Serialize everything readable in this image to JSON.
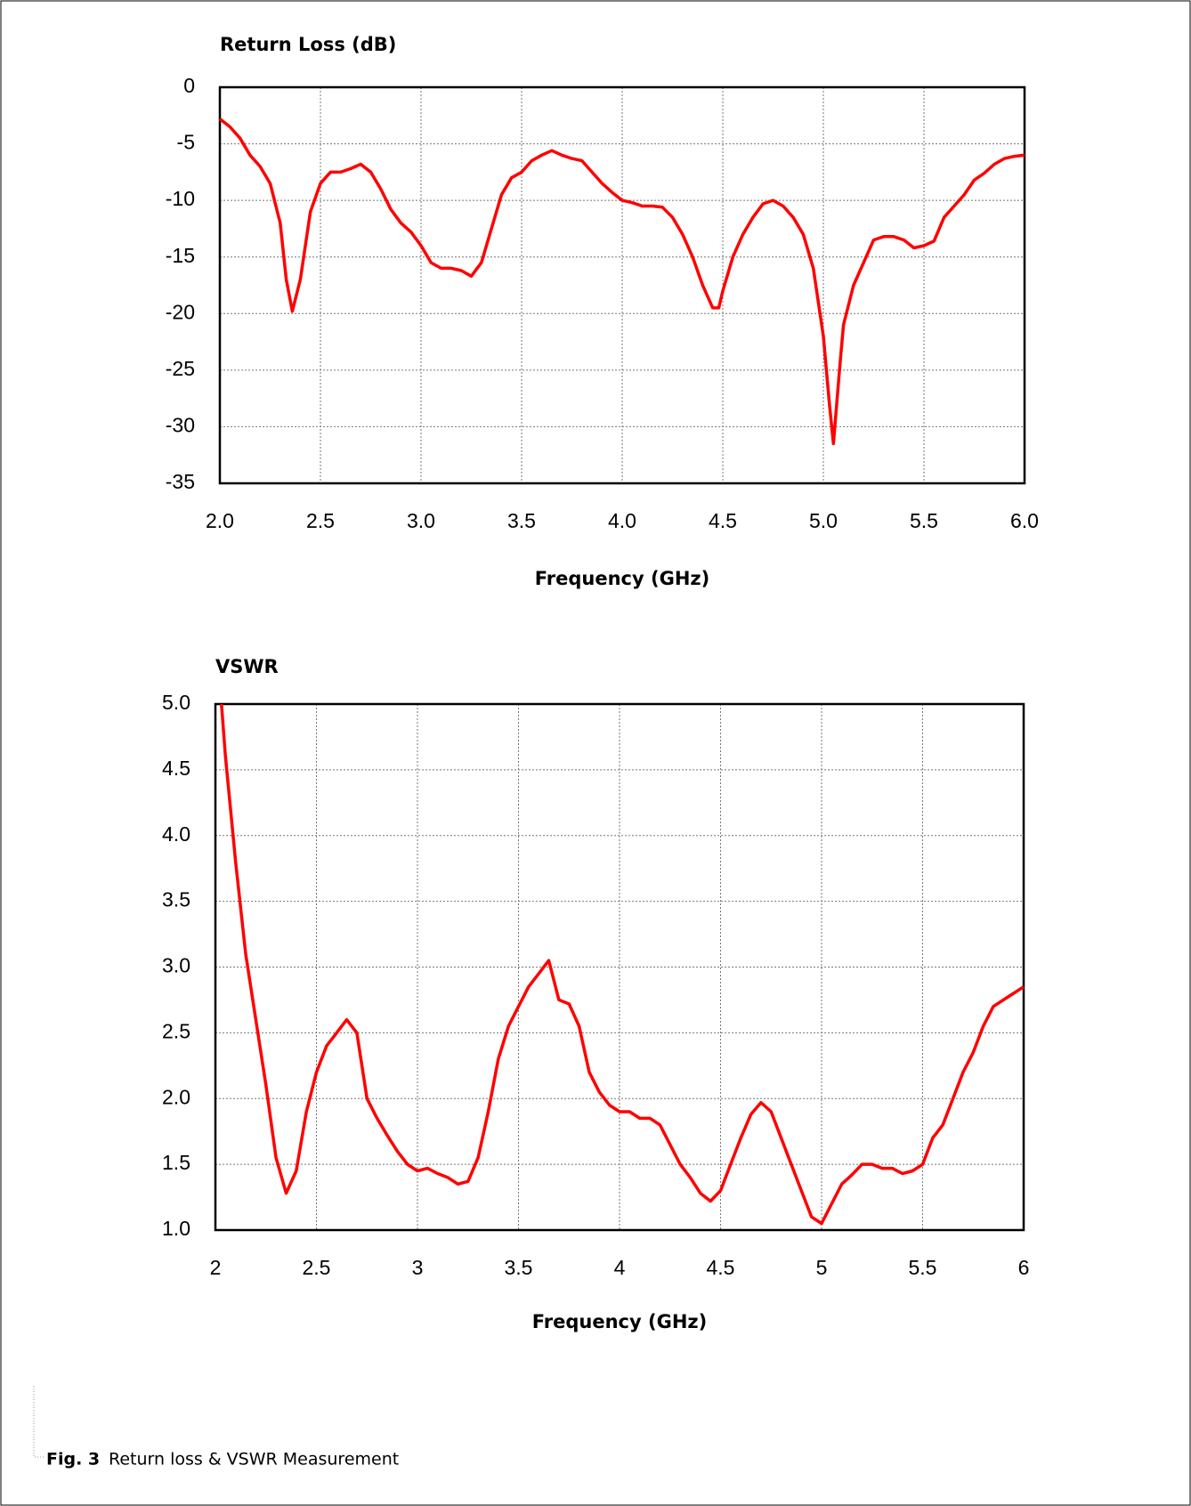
{
  "chart_data": [
    {
      "type": "line",
      "title": "Return Loss (dB)",
      "x_label": "Frequency (GHz)",
      "color": "#ff0000",
      "grid": true,
      "xlim": [
        2,
        6
      ],
      "ylim": [
        -35,
        0
      ],
      "xticks": [
        {
          "value": 2,
          "label": "2.0"
        },
        2.5,
        {
          "value": 3,
          "label": "3.0"
        },
        3.5,
        {
          "value": 4,
          "label": "4.0"
        },
        4.5,
        {
          "value": 5,
          "label": "5.0"
        },
        5.5,
        {
          "value": 6,
          "label": "6.0"
        }
      ],
      "yticks": [
        0,
        -5,
        -10,
        -15,
        -20,
        -25,
        -30,
        -35
      ],
      "x": [
        2.0,
        2.05,
        2.1,
        2.15,
        2.2,
        2.25,
        2.3,
        2.33,
        2.36,
        2.4,
        2.45,
        2.5,
        2.55,
        2.6,
        2.65,
        2.7,
        2.75,
        2.8,
        2.85,
        2.9,
        2.95,
        3.0,
        3.05,
        3.1,
        3.15,
        3.2,
        3.25,
        3.3,
        3.35,
        3.4,
        3.45,
        3.5,
        3.55,
        3.6,
        3.65,
        3.7,
        3.75,
        3.8,
        3.85,
        3.9,
        3.95,
        4.0,
        4.05,
        4.1,
        4.15,
        4.2,
        4.25,
        4.3,
        4.35,
        4.4,
        4.45,
        4.48,
        4.5,
        4.55,
        4.6,
        4.65,
        4.7,
        4.75,
        4.8,
        4.85,
        4.9,
        4.95,
        5.0,
        5.03,
        5.05,
        5.08,
        5.1,
        5.15,
        5.2,
        5.25,
        5.3,
        5.35,
        5.4,
        5.45,
        5.5,
        5.55,
        5.6,
        5.65,
        5.7,
        5.75,
        5.8,
        5.85,
        5.9,
        5.95,
        6.0
      ],
      "values": [
        -2.8,
        -3.5,
        -4.5,
        -6,
        -7,
        -8.5,
        -12,
        -17,
        -19.8,
        -17,
        -11,
        -8.5,
        -7.5,
        -7.5,
        -7.2,
        -6.8,
        -7.5,
        -9,
        -10.8,
        -12,
        -12.8,
        -14,
        -15.5,
        -16,
        -16,
        -16.2,
        -16.7,
        -15.5,
        -12.5,
        -9.5,
        -8,
        -7.5,
        -6.5,
        -6,
        -5.6,
        -6,
        -6.3,
        -6.5,
        -7.5,
        -8.5,
        -9.3,
        -10,
        -10.2,
        -10.5,
        -10.5,
        -10.6,
        -11.5,
        -13,
        -15,
        -17.5,
        -19.5,
        -19.5,
        -18,
        -15,
        -13,
        -11.5,
        -10.3,
        -10,
        -10.5,
        -11.5,
        -13,
        -16,
        -22,
        -28,
        -31.5,
        -25,
        -21,
        -17.5,
        -15.5,
        -13.5,
        -13.2,
        -13.2,
        -13.5,
        -14.2,
        -14,
        -13.6,
        -11.5,
        -10.5,
        -9.5,
        -8.2,
        -7.6,
        -6.8,
        -6.3,
        -6.1,
        -6.0
      ]
    },
    {
      "type": "line",
      "title": "VSWR",
      "x_label": "Frequency (GHz)",
      "color": "#ff0000",
      "grid": true,
      "xlim": [
        2,
        6
      ],
      "ylim": [
        1,
        5
      ],
      "xticks": [
        2,
        2.5,
        3,
        3.5,
        4,
        4.5,
        5,
        5.5,
        6
      ],
      "yticks": [
        {
          "value": 5,
          "label": "5.0"
        },
        4.5,
        {
          "value": 4,
          "label": "4.0"
        },
        3.5,
        {
          "value": 3,
          "label": "3.0"
        },
        2.5,
        {
          "value": 2,
          "label": "2.0"
        },
        1.5,
        {
          "value": 1,
          "label": "1.0"
        }
      ],
      "x": [
        2.03,
        2.05,
        2.1,
        2.15,
        2.2,
        2.25,
        2.3,
        2.35,
        2.4,
        2.45,
        2.5,
        2.55,
        2.6,
        2.65,
        2.7,
        2.75,
        2.8,
        2.85,
        2.9,
        2.95,
        3.0,
        3.05,
        3.1,
        3.15,
        3.2,
        3.25,
        3.3,
        3.35,
        3.4,
        3.45,
        3.5,
        3.55,
        3.6,
        3.65,
        3.7,
        3.75,
        3.8,
        3.85,
        3.9,
        3.95,
        4.0,
        4.05,
        4.1,
        4.15,
        4.2,
        4.25,
        4.3,
        4.35,
        4.4,
        4.45,
        4.5,
        4.55,
        4.6,
        4.65,
        4.7,
        4.75,
        4.8,
        4.85,
        4.9,
        4.95,
        5.0,
        5.05,
        5.1,
        5.15,
        5.2,
        5.25,
        5.3,
        5.35,
        5.4,
        5.45,
        5.5,
        5.55,
        5.6,
        5.65,
        5.7,
        5.75,
        5.8,
        5.85,
        5.9,
        5.95,
        6.0
      ],
      "values": [
        5.0,
        4.6,
        3.8,
        3.1,
        2.6,
        2.1,
        1.55,
        1.28,
        1.45,
        1.9,
        2.2,
        2.4,
        2.5,
        2.6,
        2.5,
        2.0,
        1.85,
        1.72,
        1.6,
        1.5,
        1.45,
        1.47,
        1.43,
        1.4,
        1.35,
        1.37,
        1.55,
        1.9,
        2.3,
        2.55,
        2.7,
        2.85,
        2.95,
        3.05,
        2.75,
        2.72,
        2.55,
        2.2,
        2.05,
        1.95,
        1.9,
        1.9,
        1.85,
        1.85,
        1.8,
        1.65,
        1.5,
        1.4,
        1.28,
        1.22,
        1.3,
        1.5,
        1.7,
        1.88,
        1.97,
        1.9,
        1.7,
        1.5,
        1.3,
        1.1,
        1.05,
        1.2,
        1.35,
        1.42,
        1.5,
        1.5,
        1.47,
        1.47,
        1.43,
        1.45,
        1.5,
        1.7,
        1.8,
        2.0,
        2.2,
        2.35,
        2.55,
        2.7,
        2.75,
        2.8,
        2.85
      ]
    }
  ],
  "caption": {
    "label": "Fig. 3",
    "text": "Return loss & VSWR Measurement"
  }
}
